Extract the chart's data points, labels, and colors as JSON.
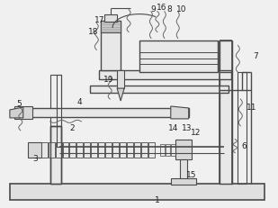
{
  "bg_color": "#f0f0f0",
  "line_color": "#4a4a4a",
  "label_color": "#222222",
  "figsize": [
    3.09,
    2.31
  ],
  "dpi": 100
}
